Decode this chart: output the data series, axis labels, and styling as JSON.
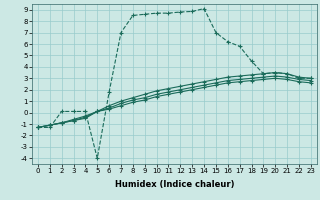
{
  "xlabel": "Humidex (Indice chaleur)",
  "bg_color": "#cce8e4",
  "line_color": "#1a6b5a",
  "grid_color": "#99cccc",
  "xlim": [
    -0.5,
    23.5
  ],
  "ylim": [
    -4.5,
    9.5
  ],
  "xticks": [
    0,
    1,
    2,
    3,
    4,
    5,
    6,
    7,
    8,
    9,
    10,
    11,
    12,
    13,
    14,
    15,
    16,
    17,
    18,
    19,
    20,
    21,
    22,
    23
  ],
  "yticks": [
    -4,
    -3,
    -2,
    -1,
    0,
    1,
    2,
    3,
    4,
    5,
    6,
    7,
    8,
    9
  ],
  "line1_x": [
    0,
    1,
    2,
    3,
    4,
    5,
    6,
    7,
    8,
    9,
    10,
    11,
    12,
    13,
    14,
    15,
    16,
    17,
    18,
    19,
    20,
    21,
    22,
    23
  ],
  "line1_y": [
    -1.3,
    -1.3,
    0.1,
    0.1,
    0.1,
    -4.0,
    1.8,
    7.0,
    8.5,
    8.6,
    8.7,
    8.7,
    8.8,
    8.85,
    9.1,
    7.0,
    6.2,
    5.8,
    4.5,
    3.4,
    3.5,
    3.4,
    3.0,
    3.0
  ],
  "line2_x": [
    0,
    1,
    2,
    3,
    4,
    5,
    6,
    7,
    8,
    9,
    10,
    11,
    12,
    13,
    14,
    15,
    16,
    17,
    18,
    19,
    20,
    21,
    22,
    23
  ],
  "line2_y": [
    -1.3,
    -1.1,
    -0.9,
    -0.6,
    -0.3,
    0.1,
    0.6,
    1.0,
    1.3,
    1.6,
    1.9,
    2.1,
    2.3,
    2.5,
    2.7,
    2.9,
    3.1,
    3.2,
    3.3,
    3.4,
    3.5,
    3.4,
    3.1,
    3.0
  ],
  "line3_x": [
    0,
    1,
    2,
    3,
    4,
    5,
    6,
    7,
    8,
    9,
    10,
    11,
    12,
    13,
    14,
    15,
    16,
    17,
    18,
    19,
    20,
    21,
    22,
    23
  ],
  "line3_y": [
    -1.3,
    -1.1,
    -0.9,
    -0.7,
    -0.4,
    0.1,
    0.4,
    0.8,
    1.1,
    1.3,
    1.6,
    1.8,
    2.0,
    2.2,
    2.4,
    2.6,
    2.8,
    2.9,
    3.0,
    3.1,
    3.2,
    3.1,
    2.9,
    2.8
  ],
  "line4_x": [
    0,
    1,
    2,
    3,
    4,
    5,
    6,
    7,
    8,
    9,
    10,
    11,
    12,
    13,
    14,
    15,
    16,
    17,
    18,
    19,
    20,
    21,
    22,
    23
  ],
  "line4_y": [
    -1.3,
    -1.1,
    -0.9,
    -0.7,
    -0.5,
    0.1,
    0.3,
    0.6,
    0.9,
    1.1,
    1.4,
    1.6,
    1.8,
    2.0,
    2.2,
    2.4,
    2.6,
    2.7,
    2.8,
    2.9,
    3.0,
    2.9,
    2.7,
    2.6
  ],
  "line1_style": "--",
  "line2_style": "-",
  "line3_style": "-",
  "line4_style": "-",
  "marker": "+",
  "markersize": 3,
  "linewidth": 0.8,
  "tick_fontsize": 5,
  "xlabel_fontsize": 6
}
